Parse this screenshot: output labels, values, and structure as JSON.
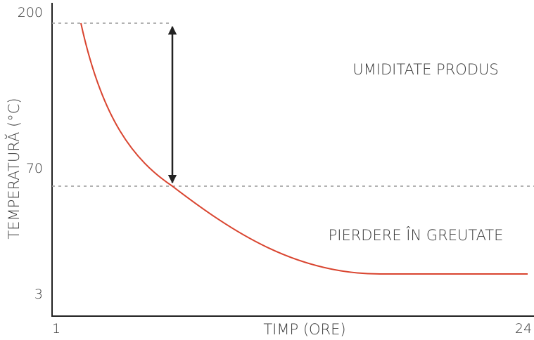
{
  "axes": {
    "y_label": "TEMPERATURĂ (°C)",
    "x_label": "TIMP (ORE)",
    "y_marks": [
      "200",
      "70",
      "3"
    ],
    "x_marks": [
      "1",
      "24"
    ]
  },
  "annotations": {
    "top": "UMIDITATE PRODUS",
    "bottom": "PIERDERE ÎN GREUTATE"
  }
}
